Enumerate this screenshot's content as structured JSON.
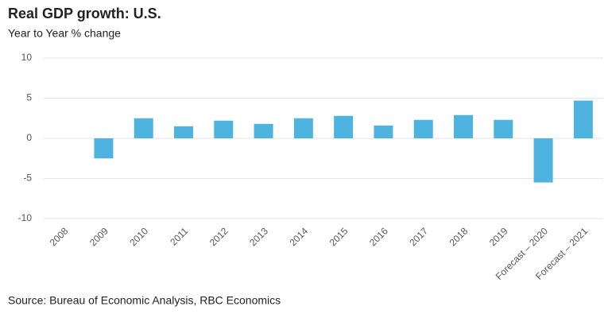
{
  "chart_data": {
    "type": "bar",
    "title": "Real GDP growth: U.S.",
    "subtitle": "Year to Year % change",
    "source": "Source: Bureau of Economic Analysis, RBC Economics",
    "categories": [
      "2008",
      "2009",
      "2010",
      "2011",
      "2012",
      "2013",
      "2014",
      "2015",
      "2016",
      "2017",
      "2018",
      "2019",
      "Forecast – 2020",
      "Forecast – 2021"
    ],
    "values": [
      0,
      -2.5,
      2.5,
      1.5,
      2.2,
      1.8,
      2.5,
      2.8,
      1.6,
      2.3,
      2.9,
      2.3,
      -5.5,
      4.7
    ],
    "color": "#4fb3e0",
    "ylim": [
      -10,
      10
    ],
    "yticks": [
      -10,
      -5,
      0,
      5,
      10
    ],
    "grid": true
  }
}
